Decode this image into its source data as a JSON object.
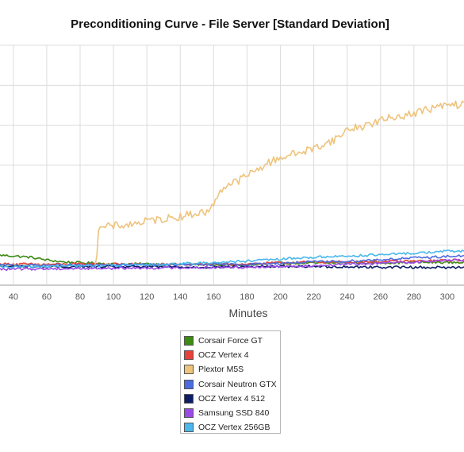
{
  "chart_data": {
    "type": "line",
    "title": "Preconditioning Curve - File Server [Standard Deviation]",
    "xlabel": "Minutes",
    "ylabel": "",
    "x_ticks": [
      40,
      60,
      80,
      100,
      120,
      140,
      160,
      180,
      200,
      220,
      240,
      260,
      280,
      300
    ],
    "xlim": [
      32,
      310
    ],
    "ylim": [
      0,
      6
    ],
    "grid": true,
    "legend_position": "bottom",
    "series": [
      {
        "name": "Corsair Force GT",
        "color": "#3d8a12",
        "points": [
          [
            32,
            0.75
          ],
          [
            40,
            0.73
          ],
          [
            50,
            0.7
          ],
          [
            60,
            0.63
          ],
          [
            70,
            0.58
          ],
          [
            80,
            0.56
          ],
          [
            90,
            0.55
          ],
          [
            100,
            0.53
          ],
          [
            120,
            0.53
          ],
          [
            140,
            0.52
          ],
          [
            160,
            0.51
          ],
          [
            180,
            0.5
          ],
          [
            190,
            0.52
          ],
          [
            200,
            0.55
          ],
          [
            220,
            0.55
          ],
          [
            240,
            0.56
          ],
          [
            260,
            0.56
          ],
          [
            280,
            0.57
          ],
          [
            300,
            0.57
          ],
          [
            310,
            0.57
          ]
        ]
      },
      {
        "name": "OCZ Vertex 4",
        "color": "#e8403b",
        "points": [
          [
            32,
            0.53
          ],
          [
            60,
            0.52
          ],
          [
            90,
            0.53
          ],
          [
            120,
            0.52
          ],
          [
            150,
            0.52
          ],
          [
            180,
            0.53
          ],
          [
            200,
            0.56
          ],
          [
            220,
            0.58
          ],
          [
            240,
            0.58
          ],
          [
            260,
            0.59
          ],
          [
            280,
            0.6
          ],
          [
            300,
            0.62
          ],
          [
            310,
            0.63
          ]
        ]
      },
      {
        "name": "Plextor M5S",
        "color": "#eec37c",
        "points": [
          [
            32,
            0.5
          ],
          [
            60,
            0.5
          ],
          [
            80,
            0.49
          ],
          [
            89,
            0.5
          ],
          [
            90,
            0.8
          ],
          [
            91,
            1.4
          ],
          [
            95,
            1.45
          ],
          [
            100,
            1.48
          ],
          [
            110,
            1.52
          ],
          [
            120,
            1.6
          ],
          [
            130,
            1.66
          ],
          [
            140,
            1.72
          ],
          [
            150,
            1.8
          ],
          [
            158,
            1.85
          ],
          [
            160,
            2.05
          ],
          [
            164,
            2.38
          ],
          [
            168,
            2.5
          ],
          [
            175,
            2.62
          ],
          [
            180,
            2.75
          ],
          [
            185,
            2.85
          ],
          [
            190,
            3.0
          ],
          [
            200,
            3.2
          ],
          [
            210,
            3.3
          ],
          [
            220,
            3.42
          ],
          [
            230,
            3.6
          ],
          [
            235,
            3.7
          ],
          [
            240,
            3.9
          ],
          [
            250,
            3.98
          ],
          [
            260,
            4.12
          ],
          [
            270,
            4.22
          ],
          [
            280,
            4.3
          ],
          [
            290,
            4.42
          ],
          [
            300,
            4.5
          ],
          [
            310,
            4.52
          ]
        ]
      },
      {
        "name": "Corsair Neutron GTX",
        "color": "#4d6be0",
        "points": [
          [
            32,
            0.5
          ],
          [
            60,
            0.5
          ],
          [
            90,
            0.5
          ],
          [
            120,
            0.51
          ],
          [
            150,
            0.51
          ],
          [
            180,
            0.52
          ],
          [
            200,
            0.55
          ],
          [
            220,
            0.58
          ],
          [
            240,
            0.6
          ],
          [
            260,
            0.64
          ],
          [
            280,
            0.68
          ],
          [
            300,
            0.72
          ],
          [
            310,
            0.73
          ]
        ]
      },
      {
        "name": "OCZ Vertex 4 512",
        "color": "#0d1e66",
        "points": [
          [
            32,
            0.47
          ],
          [
            60,
            0.46
          ],
          [
            90,
            0.46
          ],
          [
            120,
            0.46
          ],
          [
            150,
            0.45
          ],
          [
            180,
            0.46
          ],
          [
            200,
            0.47
          ],
          [
            220,
            0.47
          ],
          [
            240,
            0.46
          ],
          [
            260,
            0.45
          ],
          [
            280,
            0.45
          ],
          [
            300,
            0.44
          ],
          [
            310,
            0.45
          ]
        ]
      },
      {
        "name": "Samsung SSD 840",
        "color": "#9a4be6",
        "points": [
          [
            32,
            0.4
          ],
          [
            60,
            0.41
          ],
          [
            90,
            0.42
          ],
          [
            120,
            0.43
          ],
          [
            150,
            0.44
          ],
          [
            180,
            0.45
          ],
          [
            200,
            0.47
          ],
          [
            220,
            0.49
          ],
          [
            240,
            0.52
          ],
          [
            260,
            0.55
          ],
          [
            280,
            0.58
          ],
          [
            300,
            0.62
          ],
          [
            310,
            0.63
          ]
        ]
      },
      {
        "name": "OCZ Vertex 256GB",
        "color": "#4ab8ec",
        "points": [
          [
            32,
            0.45
          ],
          [
            60,
            0.47
          ],
          [
            90,
            0.49
          ],
          [
            120,
            0.51
          ],
          [
            150,
            0.55
          ],
          [
            180,
            0.6
          ],
          [
            200,
            0.65
          ],
          [
            220,
            0.7
          ],
          [
            240,
            0.73
          ],
          [
            260,
            0.76
          ],
          [
            280,
            0.8
          ],
          [
            300,
            0.85
          ],
          [
            310,
            0.85
          ]
        ]
      }
    ]
  }
}
